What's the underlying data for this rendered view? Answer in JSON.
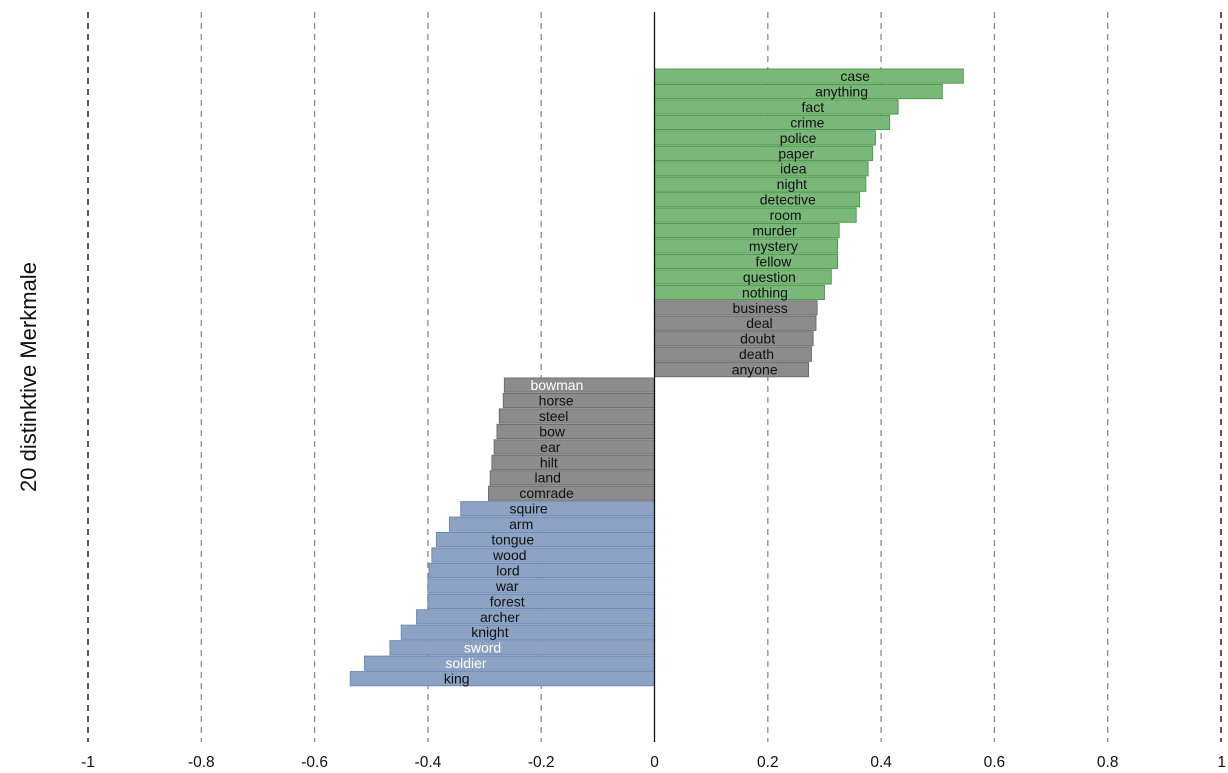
{
  "chart_data": {
    "type": "bar",
    "orientation": "horizontal",
    "ylabel": "20 distinktive Merkmale",
    "xlabel": "",
    "title": "",
    "xlim": [
      -1,
      1
    ],
    "xticks": [
      -1,
      -0.8,
      -0.6,
      -0.4,
      -0.2,
      0,
      0.2,
      0.4,
      0.6,
      0.8,
      1
    ],
    "xtick_labels": [
      "-1",
      "-0.8",
      "-0.6",
      "-0.4",
      "-0.2",
      "0",
      "0.2",
      "0.4",
      "0.6",
      "0.8",
      "1"
    ],
    "grid": "vertical dashed at each tick",
    "colors": {
      "green": "#7ab87a",
      "green_edge": "#4f9a4f",
      "grey": "#8c8c8c",
      "grey_edge": "#6e6e6e",
      "blue": "#8da3c4",
      "blue_edge": "#6f89b5"
    },
    "bars": [
      {
        "label": "case",
        "value": 0.545,
        "group": "green"
      },
      {
        "label": "anything",
        "value": 0.508,
        "group": "green"
      },
      {
        "label": "fact",
        "value": 0.43,
        "group": "green"
      },
      {
        "label": "crime",
        "value": 0.415,
        "group": "green"
      },
      {
        "label": "police",
        "value": 0.39,
        "group": "green"
      },
      {
        "label": "paper",
        "value": 0.385,
        "group": "green"
      },
      {
        "label": "idea",
        "value": 0.377,
        "group": "green"
      },
      {
        "label": "night",
        "value": 0.373,
        "group": "green"
      },
      {
        "label": "detective",
        "value": 0.362,
        "group": "green"
      },
      {
        "label": "room",
        "value": 0.356,
        "group": "green"
      },
      {
        "label": "murder",
        "value": 0.326,
        "group": "green"
      },
      {
        "label": "mystery",
        "value": 0.323,
        "group": "green"
      },
      {
        "label": "fellow",
        "value": 0.323,
        "group": "green"
      },
      {
        "label": "question",
        "value": 0.312,
        "group": "green"
      },
      {
        "label": "nothing",
        "value": 0.3,
        "group": "green"
      },
      {
        "label": "business",
        "value": 0.287,
        "group": "grey"
      },
      {
        "label": "deal",
        "value": 0.285,
        "group": "grey"
      },
      {
        "label": "doubt",
        "value": 0.28,
        "group": "grey"
      },
      {
        "label": "death",
        "value": 0.277,
        "group": "grey"
      },
      {
        "label": "anyone",
        "value": 0.272,
        "group": "grey"
      },
      {
        "label": "bowman",
        "value": -0.265,
        "group": "grey",
        "light_text": true
      },
      {
        "label": "horse",
        "value": -0.267,
        "group": "grey"
      },
      {
        "label": "steel",
        "value": -0.274,
        "group": "grey"
      },
      {
        "label": "bow",
        "value": -0.278,
        "group": "grey"
      },
      {
        "label": "ear",
        "value": -0.283,
        "group": "grey"
      },
      {
        "label": "hilt",
        "value": -0.287,
        "group": "grey"
      },
      {
        "label": "land",
        "value": -0.29,
        "group": "grey"
      },
      {
        "label": "comrade",
        "value": -0.293,
        "group": "grey"
      },
      {
        "label": "squire",
        "value": -0.342,
        "group": "blue"
      },
      {
        "label": "arm",
        "value": -0.362,
        "group": "blue"
      },
      {
        "label": "tongue",
        "value": -0.385,
        "group": "blue"
      },
      {
        "label": "wood",
        "value": -0.393,
        "group": "blue"
      },
      {
        "label": "lord",
        "value": -0.398,
        "group": "blue"
      },
      {
        "label": "war",
        "value": -0.4,
        "group": "blue"
      },
      {
        "label": "forest",
        "value": -0.4,
        "group": "blue"
      },
      {
        "label": "archer",
        "value": -0.42,
        "group": "blue"
      },
      {
        "label": "knight",
        "value": -0.447,
        "group": "blue"
      },
      {
        "label": "sword",
        "value": -0.467,
        "group": "blue",
        "light_text": true
      },
      {
        "label": "soldier",
        "value": -0.512,
        "group": "blue",
        "light_text": true
      },
      {
        "label": "king",
        "value": -0.537,
        "group": "blue"
      }
    ]
  }
}
